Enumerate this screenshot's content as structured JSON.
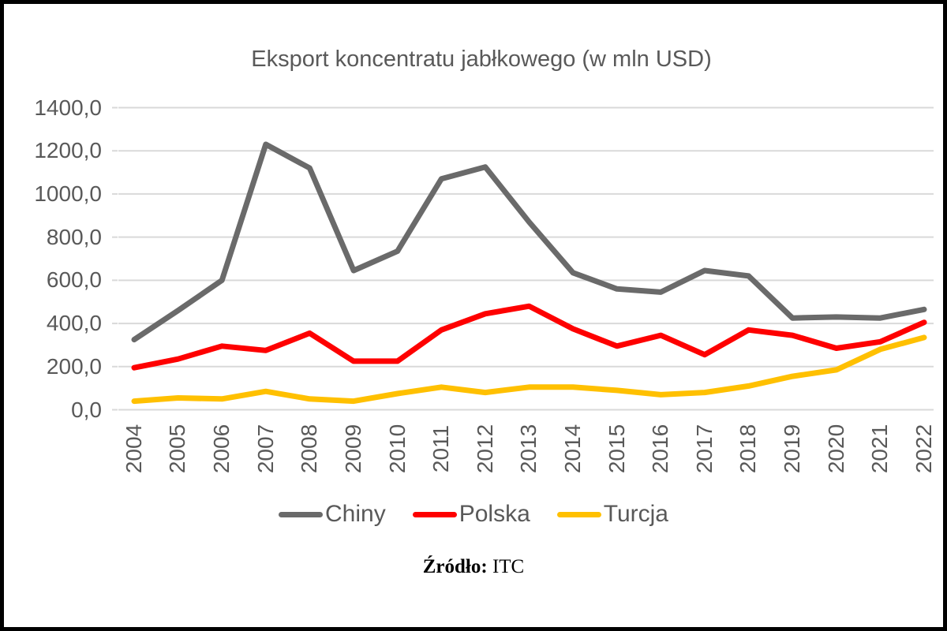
{
  "chart_data": {
    "type": "line",
    "title": "Eksport koncentratu jabłkowego (w mln USD)",
    "x": [
      "2004",
      "2005",
      "2006",
      "2007",
      "2008",
      "2009",
      "2010",
      "2011",
      "2012",
      "2013",
      "2014",
      "2015",
      "2016",
      "2017",
      "2018",
      "2019",
      "2020",
      "2021",
      "2022"
    ],
    "series": [
      {
        "name": "Chiny",
        "color": "#6a6a6a",
        "values": [
          325,
          460,
          600,
          1230,
          1120,
          645,
          735,
          1070,
          1125,
          870,
          635,
          560,
          545,
          645,
          620,
          425,
          430,
          425,
          465
        ]
      },
      {
        "name": "Polska",
        "color": "#fe0000",
        "values": [
          195,
          235,
          295,
          275,
          355,
          225,
          225,
          370,
          445,
          480,
          375,
          295,
          345,
          255,
          370,
          345,
          285,
          315,
          405
        ]
      },
      {
        "name": "Turcja",
        "color": "#ffc000",
        "values": [
          40,
          55,
          50,
          85,
          50,
          40,
          75,
          105,
          80,
          105,
          105,
          90,
          70,
          80,
          110,
          155,
          185,
          280,
          335
        ]
      }
    ],
    "y_axis": {
      "min": 0,
      "max": 1400,
      "step": 200,
      "tick_labels": [
        "0,0",
        "200,0",
        "400,0",
        "600,0",
        "800,0",
        "1000,0",
        "1200,0",
        "1400,0"
      ]
    },
    "grid": true,
    "legend_position": "bottom"
  },
  "source": {
    "label": "Źródło:",
    "value": "ITC"
  },
  "colors": {
    "grid": "#d9d9d9",
    "axis_text": "#595959",
    "title_text": "#595959",
    "legend_text": "#595959",
    "background": "#ffffff",
    "border": "#000000"
  }
}
